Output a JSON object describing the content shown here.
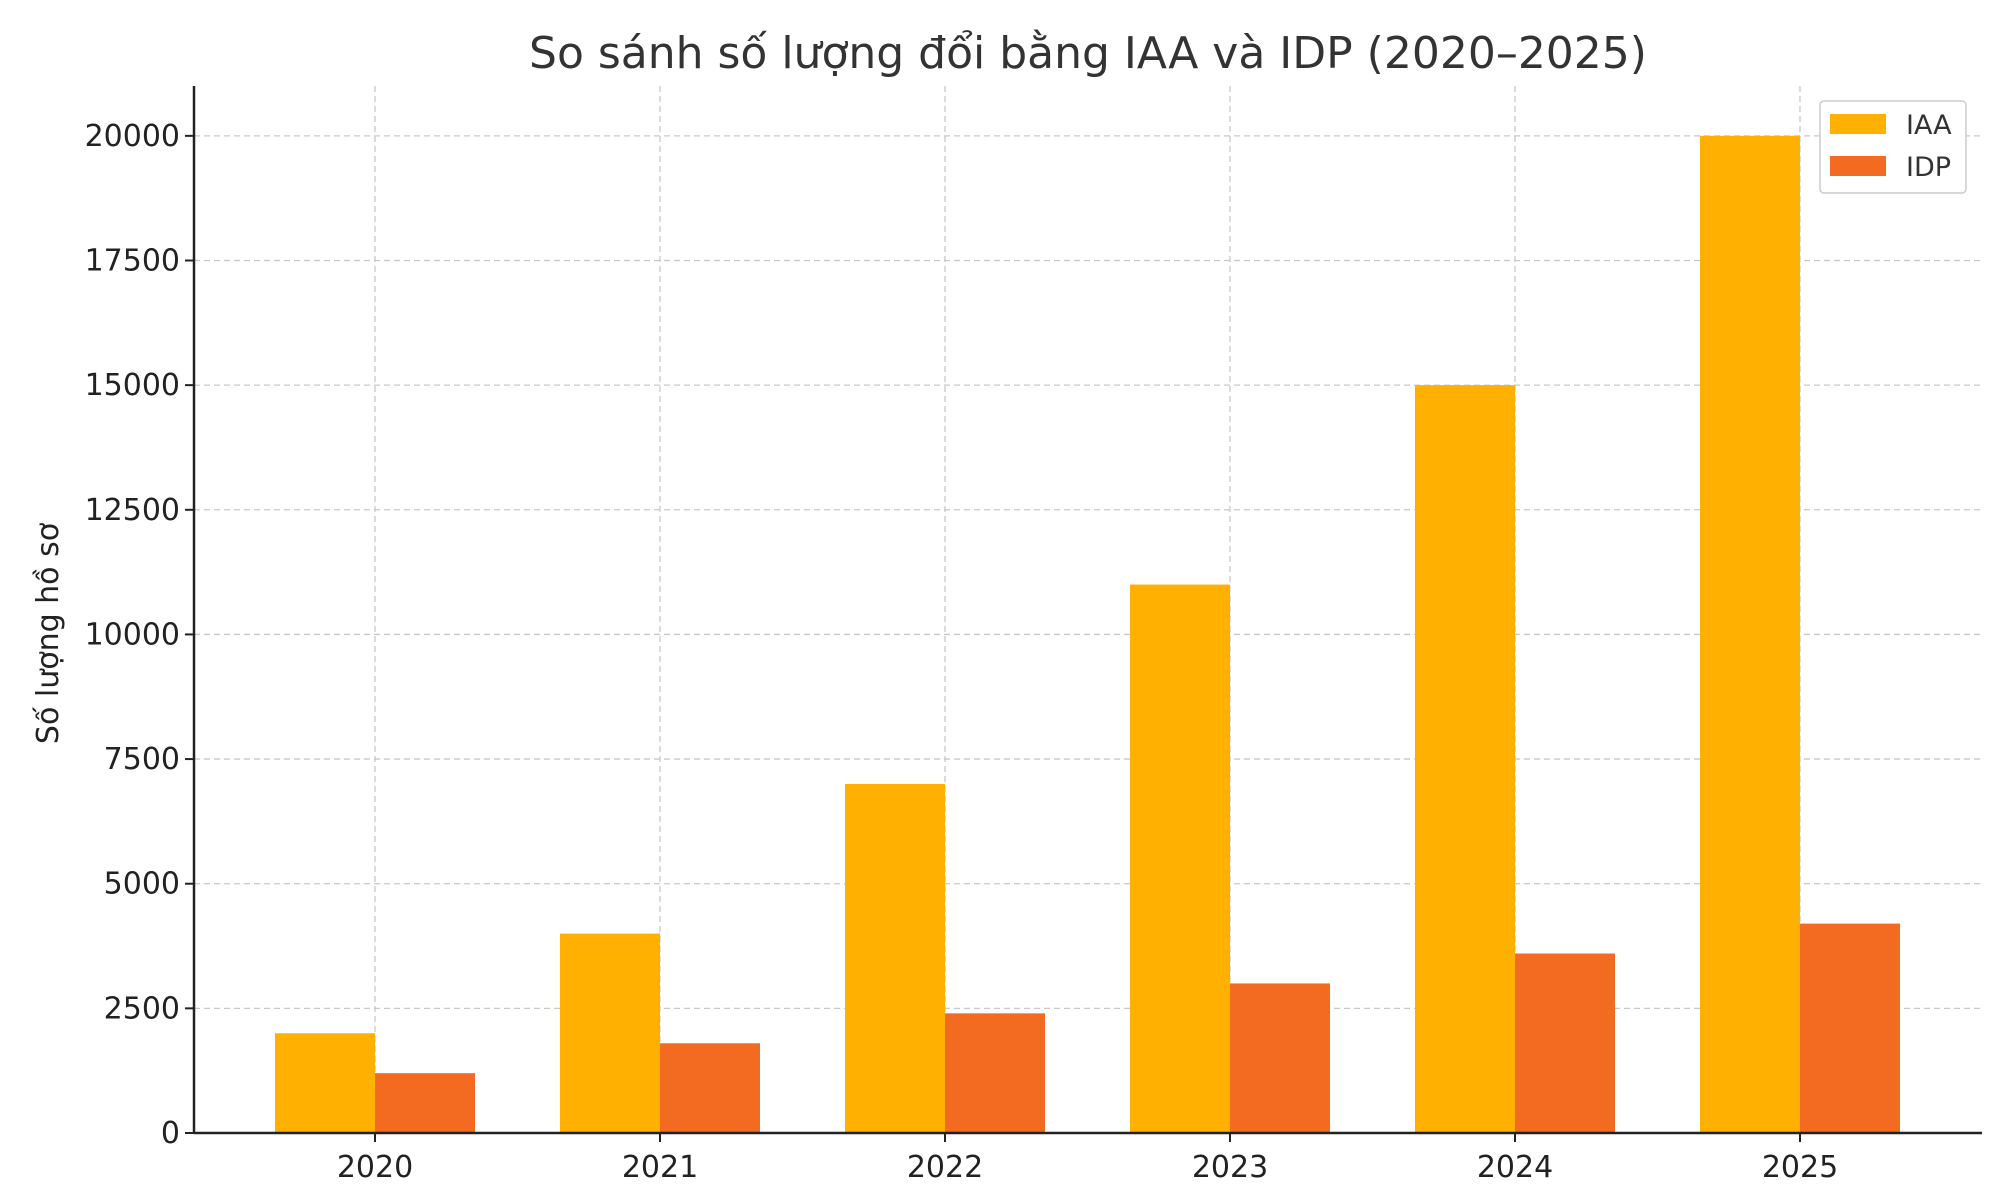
{
  "chart_data": {
    "type": "bar",
    "title": "So sánh số lượng đổi bằng IAA và IDP (2020–2025)",
    "xlabel": "",
    "ylabel": "Số lượng hồ sơ",
    "categories": [
      "2020",
      "2021",
      "2022",
      "2023",
      "2024",
      "2025"
    ],
    "series": [
      {
        "name": "IAA",
        "color": "#FFB000",
        "values": [
          2000,
          4000,
          7000,
          11000,
          15000,
          20000
        ]
      },
      {
        "name": "IDP",
        "color": "#F26B21",
        "values": [
          1200,
          1800,
          2400,
          3000,
          3600,
          4200
        ]
      }
    ],
    "ylim": [
      0,
      21000
    ],
    "yticks": [
      0,
      2500,
      5000,
      7500,
      10000,
      12500,
      15000,
      17500,
      20000
    ],
    "grid": true,
    "legend_position": "top-right"
  }
}
